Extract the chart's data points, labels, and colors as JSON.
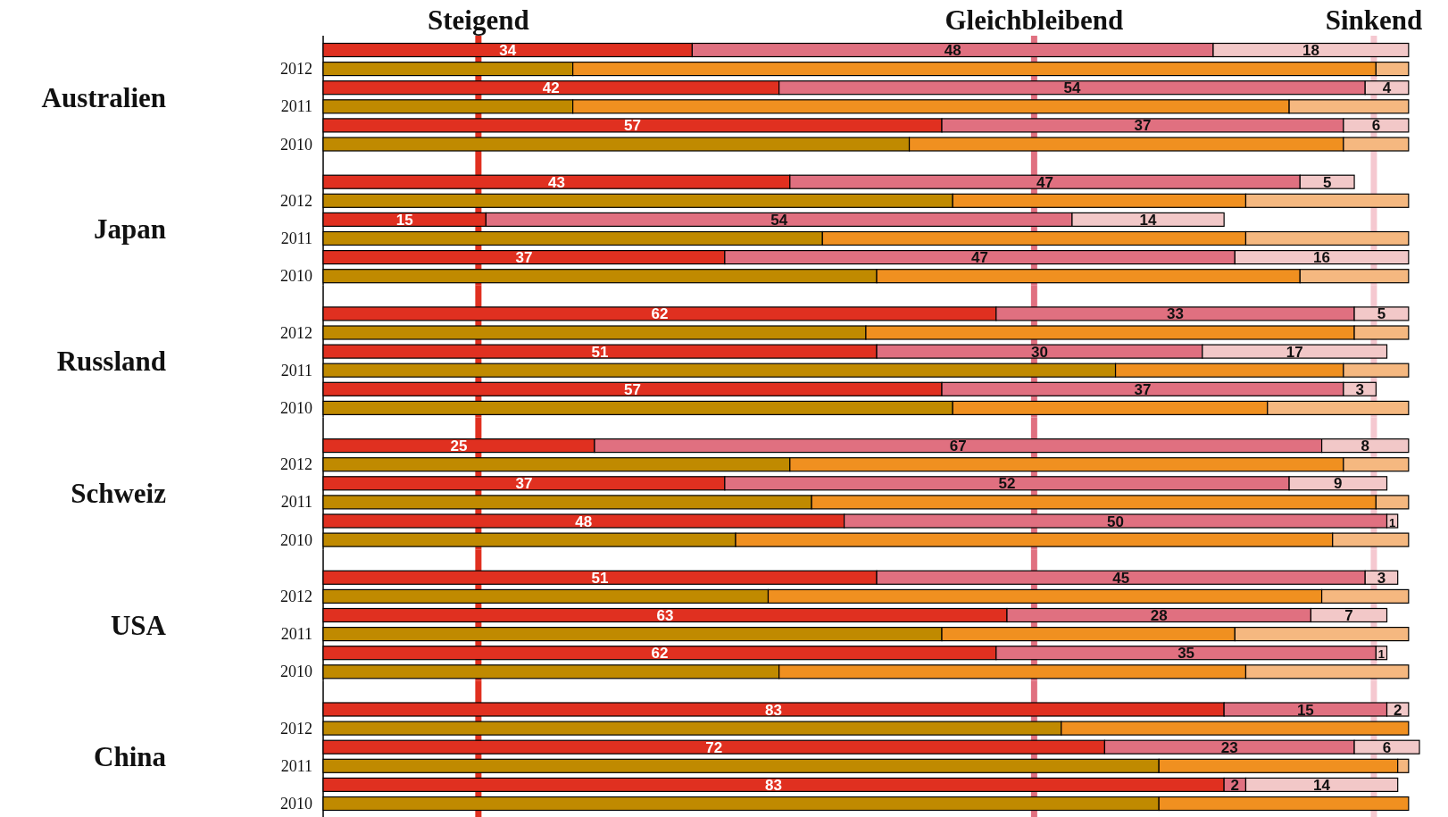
{
  "chart_data": [
    {
      "type": "bar",
      "orientation": "horizontal",
      "stacked": true,
      "tick_labels": "y",
      "ylabel": "Australien",
      "categories": [
        null,
        "2012",
        null,
        "2011",
        null,
        "2010"
      ],
      "ref_lines": [
        {
          "axis": "x",
          "value": 14.3,
          "label": "Steigend",
          "color": "#e03020"
        },
        {
          "axis": "x",
          "value": 65.5,
          "label": "Gleichbleibend",
          "color": "#e07080"
        },
        {
          "axis": "x",
          "value": 96.8,
          "label": "Sinkend",
          "color": "#f5c8d0"
        }
      ],
      "series": [
        {
          "color": "#e03020",
          "values": [
            34,
            null,
            42,
            null,
            57,
            null
          ],
          "value_labels": [
            "34",
            null,
            "42",
            null,
            "57",
            null
          ]
        },
        {
          "color": "#e07080",
          "values": [
            48,
            null,
            54,
            null,
            37,
            null
          ],
          "value_labels": [
            "48",
            null,
            "54",
            null,
            "37",
            null
          ]
        },
        {
          "color": "#f2c8c8",
          "values": [
            18,
            null,
            4,
            null,
            6,
            null
          ],
          "value_labels": [
            "18",
            null,
            "4",
            null,
            "6",
            null
          ]
        },
        {
          "color": "#c08a00",
          "values": [
            null,
            23,
            null,
            23,
            null,
            54
          ]
        },
        {
          "color": "#f09020",
          "values": [
            null,
            74,
            null,
            66,
            null,
            40
          ]
        },
        {
          "color": "#f5b880",
          "values": [
            null,
            3,
            null,
            11,
            null,
            6
          ]
        }
      ]
    },
    {
      "type": "bar",
      "orientation": "horizontal",
      "stacked": true,
      "tick_labels": "y",
      "ylabel": "Japan",
      "categories": [
        null,
        "2012",
        null,
        "2011",
        null,
        "2010"
      ],
      "ref_lines": [
        {
          "axis": "x",
          "value": 14.3,
          "color": "#e03020"
        },
        {
          "axis": "x",
          "value": 65.5,
          "color": "#e07080"
        },
        {
          "axis": "x",
          "value": 96.8,
          "color": "#f5c8d0"
        }
      ],
      "series": [
        {
          "color": "#e03020",
          "values": [
            43,
            null,
            15,
            null,
            37,
            null
          ],
          "value_labels": [
            "43",
            null,
            "15",
            null,
            "37",
            null
          ]
        },
        {
          "color": "#e07080",
          "values": [
            47,
            null,
            54,
            null,
            47,
            null
          ],
          "value_labels": [
            "47",
            null,
            "54",
            null,
            "47",
            null
          ]
        },
        {
          "color": "#f2c8c8",
          "values": [
            5,
            null,
            14,
            null,
            16,
            null
          ],
          "value_labels": [
            "5",
            null,
            "14",
            null,
            "16",
            null
          ]
        },
        {
          "color": "#c08a00",
          "values": [
            null,
            58,
            null,
            46,
            null,
            51
          ]
        },
        {
          "color": "#f09020",
          "values": [
            null,
            27,
            null,
            39,
            null,
            39
          ]
        },
        {
          "color": "#f5b880",
          "values": [
            null,
            15,
            null,
            15,
            null,
            10
          ]
        }
      ]
    },
    {
      "type": "bar",
      "orientation": "horizontal",
      "stacked": true,
      "tick_labels": "y",
      "ylabel": "Russland",
      "categories": [
        null,
        "2012",
        null,
        "2011",
        null,
        "2010"
      ],
      "ref_lines": [
        {
          "axis": "x",
          "value": 14.3,
          "color": "#e03020"
        },
        {
          "axis": "x",
          "value": 65.5,
          "color": "#e07080"
        },
        {
          "axis": "x",
          "value": 96.8,
          "color": "#f5c8d0"
        }
      ],
      "series": [
        {
          "color": "#e03020",
          "values": [
            62,
            null,
            51,
            null,
            57,
            null
          ],
          "value_labels": [
            "62",
            null,
            "51",
            null,
            "57",
            null
          ]
        },
        {
          "color": "#e07080",
          "values": [
            33,
            null,
            30,
            null,
            37,
            null
          ],
          "value_labels": [
            "33",
            null,
            "30",
            null,
            "37",
            null
          ]
        },
        {
          "color": "#f2c8c8",
          "values": [
            5,
            null,
            17,
            null,
            3,
            null
          ],
          "value_labels": [
            "5",
            null,
            "17",
            null,
            "3",
            null
          ]
        },
        {
          "color": "#c08a00",
          "values": [
            null,
            50,
            null,
            73,
            null,
            58
          ]
        },
        {
          "color": "#f09020",
          "values": [
            null,
            45,
            null,
            21,
            null,
            29
          ]
        },
        {
          "color": "#f5b880",
          "values": [
            null,
            5,
            null,
            6,
            null,
            13
          ]
        }
      ]
    },
    {
      "type": "bar",
      "orientation": "horizontal",
      "stacked": true,
      "tick_labels": "y",
      "ylabel": "Schweiz",
      "categories": [
        null,
        "2012",
        null,
        "2011",
        null,
        "2010"
      ],
      "ref_lines": [
        {
          "axis": "x",
          "value": 14.3,
          "color": "#e03020"
        },
        {
          "axis": "x",
          "value": 65.5,
          "color": "#e07080"
        },
        {
          "axis": "x",
          "value": 96.8,
          "color": "#f5c8d0"
        }
      ],
      "series": [
        {
          "color": "#e03020",
          "values": [
            25,
            null,
            37,
            null,
            48,
            null
          ],
          "value_labels": [
            "25",
            null,
            "37",
            null,
            "48",
            null
          ]
        },
        {
          "color": "#e07080",
          "values": [
            67,
            null,
            52,
            null,
            50,
            null
          ],
          "value_labels": [
            "67",
            null,
            "52",
            null,
            "50",
            null
          ]
        },
        {
          "color": "#f2c8c8",
          "values": [
            8,
            null,
            9,
            null,
            1,
            null
          ],
          "value_labels": [
            "8",
            null,
            "9",
            null,
            "1",
            null
          ]
        },
        {
          "color": "#c08a00",
          "values": [
            null,
            43,
            null,
            45,
            null,
            38
          ]
        },
        {
          "color": "#f09020",
          "values": [
            null,
            51,
            null,
            52,
            null,
            55
          ]
        },
        {
          "color": "#f5b880",
          "values": [
            null,
            6,
            null,
            3,
            null,
            7
          ]
        }
      ]
    },
    {
      "type": "bar",
      "orientation": "horizontal",
      "stacked": true,
      "tick_labels": "y",
      "ylabel": "USA",
      "categories": [
        null,
        "2012",
        null,
        "2011",
        null,
        "2010"
      ],
      "ref_lines": [
        {
          "axis": "x",
          "value": 14.3,
          "color": "#e03020"
        },
        {
          "axis": "x",
          "value": 65.5,
          "color": "#e07080"
        },
        {
          "axis": "x",
          "value": 96.8,
          "color": "#f5c8d0"
        }
      ],
      "series": [
        {
          "color": "#e03020",
          "values": [
            51,
            null,
            63,
            null,
            62,
            null
          ],
          "value_labels": [
            "51",
            null,
            "63",
            null,
            "62",
            null
          ]
        },
        {
          "color": "#e07080",
          "values": [
            45,
            null,
            28,
            null,
            35,
            null
          ],
          "value_labels": [
            "45",
            null,
            "28",
            null,
            "35",
            null
          ]
        },
        {
          "color": "#f2c8c8",
          "values": [
            3,
            null,
            7,
            null,
            1,
            null
          ],
          "value_labels": [
            "3",
            null,
            "7",
            null,
            "1",
            null
          ]
        },
        {
          "color": "#c08a00",
          "values": [
            null,
            41,
            null,
            57,
            null,
            42
          ]
        },
        {
          "color": "#f09020",
          "values": [
            null,
            51,
            null,
            27,
            null,
            43
          ]
        },
        {
          "color": "#f5b880",
          "values": [
            null,
            8,
            null,
            16,
            null,
            15
          ]
        }
      ]
    },
    {
      "type": "bar",
      "orientation": "horizontal",
      "stacked": true,
      "tick_labels": "y",
      "ylabel": "China",
      "categories": [
        null,
        "2012",
        null,
        "2011",
        null,
        "2010"
      ],
      "ref_lines": [
        {
          "axis": "x",
          "value": 14.3,
          "color": "#e03020"
        },
        {
          "axis": "x",
          "value": 65.5,
          "color": "#e07080"
        },
        {
          "axis": "x",
          "value": 96.8,
          "color": "#f5c8d0"
        }
      ],
      "series": [
        {
          "color": "#e03020",
          "values": [
            83,
            null,
            72,
            null,
            83,
            null
          ],
          "value_labels": [
            "83",
            null,
            "72",
            null,
            "83",
            null
          ]
        },
        {
          "color": "#e07080",
          "values": [
            15,
            null,
            23,
            null,
            2,
            null
          ],
          "value_labels": [
            "15",
            null,
            "23",
            null,
            "2",
            null
          ]
        },
        {
          "color": "#f2c8c8",
          "values": [
            2,
            null,
            6,
            null,
            14,
            null
          ],
          "value_labels": [
            "2",
            null,
            "6",
            null,
            "14",
            null
          ]
        },
        {
          "color": "#c08a00",
          "values": [
            null,
            68,
            null,
            77,
            null,
            77
          ]
        },
        {
          "color": "#f09020",
          "values": [
            null,
            32,
            null,
            22,
            null,
            23
          ]
        },
        {
          "color": "#f5b880",
          "values": [
            null,
            null,
            null,
            1,
            null,
            null
          ]
        }
      ]
    }
  ]
}
